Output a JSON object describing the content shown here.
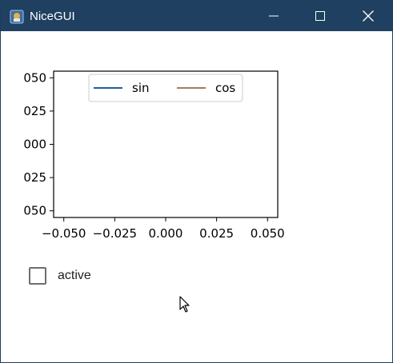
{
  "window": {
    "title": "NiceGUI",
    "controls": [
      "minimize",
      "maximize",
      "close"
    ],
    "colors": {
      "titlebar": "#1f4060",
      "title_text": "#ffffff"
    }
  },
  "checkbox": {
    "label": "active",
    "checked": false
  },
  "chart_data": {
    "type": "line",
    "title": "",
    "xlabel": "",
    "ylabel": "",
    "xlim": [
      -0.055,
      0.055
    ],
    "ylim": [
      -0.055,
      0.055
    ],
    "x_ticks": [
      "−0.050",
      "−0.025",
      "0.000",
      "0.025",
      "0.050"
    ],
    "y_ticks": [
      "050",
      "025",
      "000",
      "025",
      "050"
    ],
    "legend": {
      "placement": "top-center",
      "entries": [
        "sin",
        "cos"
      ]
    },
    "series": [
      {
        "name": "sin",
        "color": "#1f5f9a",
        "x": [],
        "y": []
      },
      {
        "name": "cos",
        "color": "#a87c5a",
        "x": [],
        "y": []
      }
    ],
    "grid": false
  }
}
